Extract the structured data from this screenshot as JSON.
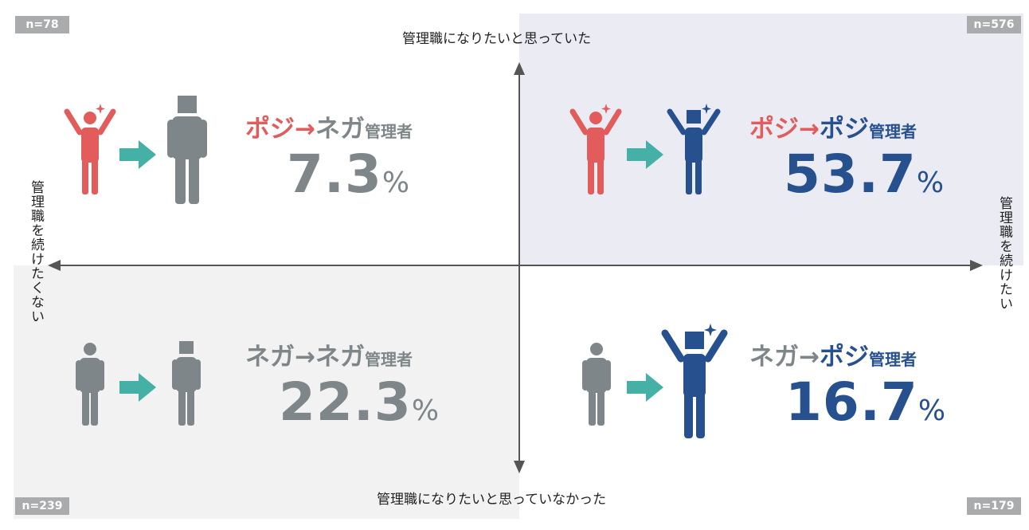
{
  "colors": {
    "positive": "#e25c5c",
    "negative": "#7e8689",
    "blue": "#27508f",
    "teal": "#44b0a6",
    "axis": "#555555",
    "badge": "#a9abad",
    "bg_top_right": "#ebebf4",
    "bg_bottom_left": "#f2f2f2"
  },
  "axes": {
    "top": "管理職になりたいと思っていた",
    "bottom": "管理職になりたいと思っていなかった",
    "left": "管理職を続けたくない",
    "right": "管理職を続けたい"
  },
  "quadrants": {
    "top_left": {
      "n": "n=78",
      "from_label": "ポジ",
      "arrow": "→",
      "to_label": "ネガ",
      "suffix": "管理者",
      "value": "7.3",
      "unit": "%",
      "from_icon": "person-raised-arms-positive-icon",
      "to_icon": "person-standing-negative-icon"
    },
    "top_right": {
      "n": "n=576",
      "from_label": "ポジ",
      "arrow": "→",
      "to_label": "ポジ",
      "suffix": "管理者",
      "value": "53.7",
      "unit": "%",
      "from_icon": "person-raised-arms-positive-icon",
      "to_icon": "person-raised-arms-blue-icon"
    },
    "bottom_left": {
      "n": "n=239",
      "from_label": "ネガ",
      "arrow": "→",
      "to_label": "ネガ",
      "suffix": "管理者",
      "value": "22.3",
      "unit": "%",
      "from_icon": "person-standing-negative-icon",
      "to_icon": "person-standing-negative-icon"
    },
    "bottom_right": {
      "n": "n=179",
      "from_label": "ネガ",
      "arrow": "→",
      "to_label": "ポジ",
      "suffix": "管理者",
      "value": "16.7",
      "unit": "%",
      "from_icon": "person-standing-negative-icon",
      "to_icon": "person-raised-arms-blue-icon"
    }
  }
}
